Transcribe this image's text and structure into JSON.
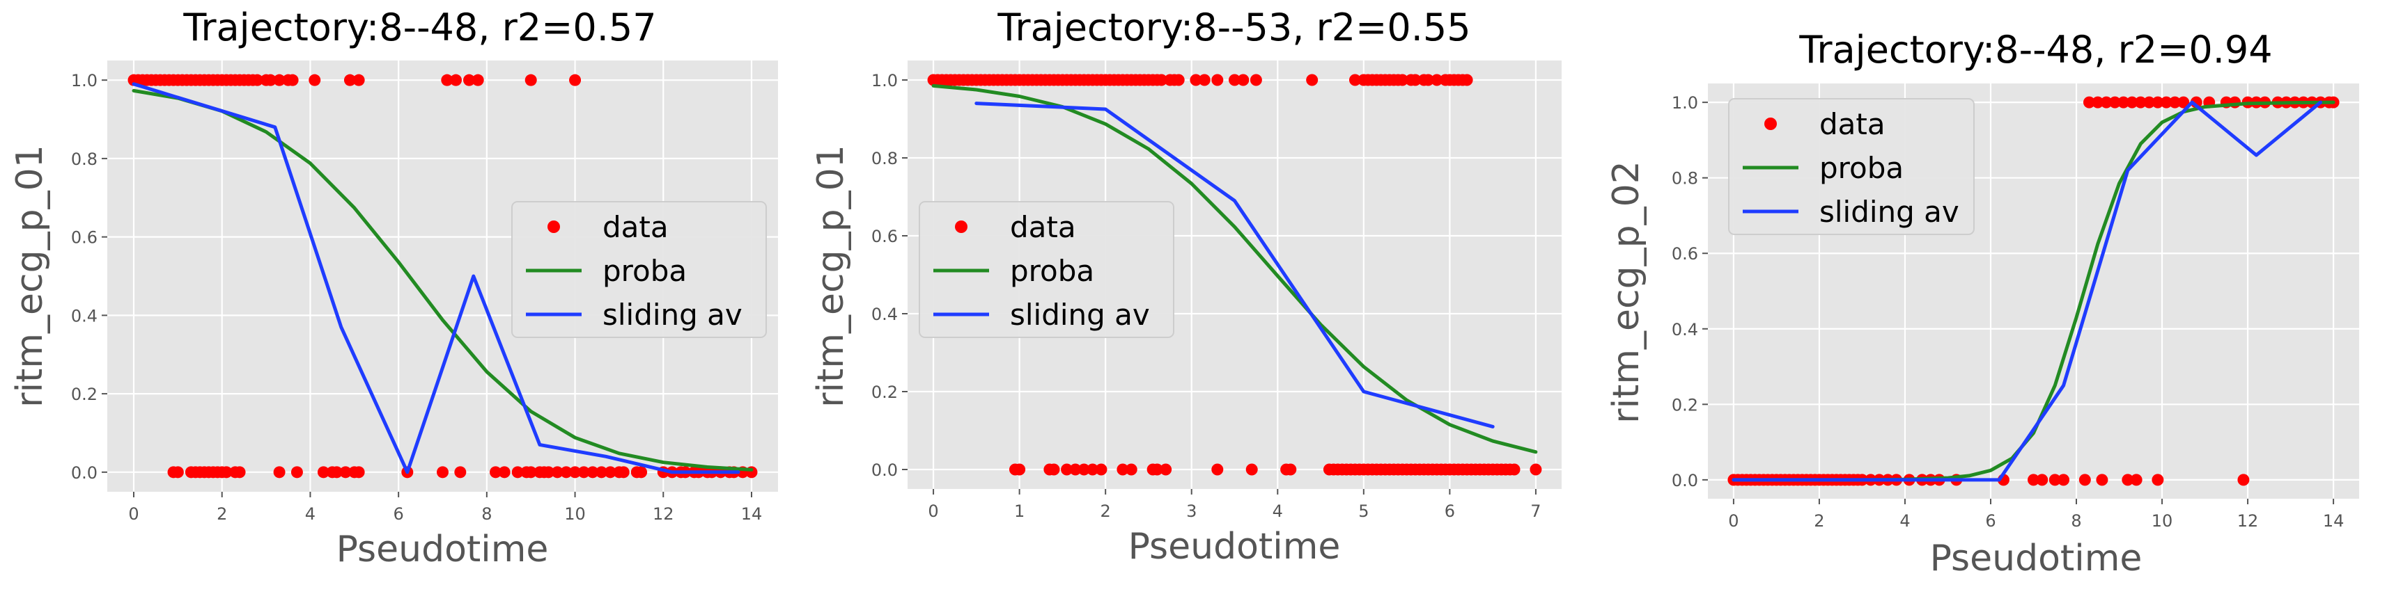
{
  "chart_data": [
    {
      "type": "scatter",
      "title": "Trajectory:8--48, r2=0.57",
      "xlabel": "Pseudotime",
      "ylabel": "ritm_ecg_p_01",
      "xlim": [
        -0.6,
        14.6
      ],
      "ylim": [
        -0.05,
        1.05
      ],
      "xticks": [
        0,
        2,
        4,
        6,
        8,
        10,
        12,
        14
      ],
      "yticks": [
        0.0,
        0.2,
        0.4,
        0.6,
        0.8,
        1.0
      ],
      "ytick_format": 1,
      "grid": true,
      "legend_position": "center-right",
      "series": [
        {
          "name": "data",
          "kind": "points",
          "color": "#ff0000",
          "x": [
            0.0,
            0.1,
            0.2,
            0.3,
            0.4,
            0.5,
            0.6,
            0.7,
            0.8,
            0.9,
            1.0,
            1.1,
            1.2,
            1.3,
            1.4,
            1.5,
            1.6,
            1.7,
            1.8,
            1.9,
            2.0,
            2.1,
            2.2,
            2.3,
            2.4,
            2.5,
            2.6,
            2.7,
            2.8,
            3.0,
            3.1,
            3.3,
            3.5,
            3.6,
            4.1,
            4.9,
            5.1,
            7.1,
            7.3,
            7.6,
            7.8,
            9.0,
            10.0,
            0.9,
            1.0,
            1.3,
            1.4,
            1.5,
            1.6,
            1.7,
            1.8,
            1.9,
            2.0,
            2.1,
            2.3,
            2.4,
            3.3,
            3.7,
            4.3,
            4.5,
            4.6,
            4.8,
            5.0,
            5.1,
            6.2,
            7.0,
            7.4,
            8.2,
            8.4,
            8.7,
            8.9,
            9.0,
            9.2,
            9.3,
            9.4,
            9.6,
            9.8,
            10.0,
            10.2,
            10.4,
            10.6,
            10.8,
            11.0,
            11.1,
            11.4,
            11.5,
            12.0,
            12.2,
            12.4,
            12.5,
            12.7,
            12.8,
            13.0,
            13.1,
            13.3,
            13.5,
            13.6,
            13.8,
            14.0
          ],
          "y": [
            1,
            1,
            1,
            1,
            1,
            1,
            1,
            1,
            1,
            1,
            1,
            1,
            1,
            1,
            1,
            1,
            1,
            1,
            1,
            1,
            1,
            1,
            1,
            1,
            1,
            1,
            1,
            1,
            1,
            1,
            1,
            1,
            1,
            1,
            1,
            1,
            1,
            1,
            1,
            1,
            1,
            1,
            1,
            0,
            0,
            0,
            0,
            0,
            0,
            0,
            0,
            0,
            0,
            0,
            0,
            0,
            0,
            0,
            0,
            0,
            0,
            0,
            0,
            0,
            0,
            0,
            0,
            0,
            0,
            0,
            0,
            0,
            0,
            0,
            0,
            0,
            0,
            0,
            0,
            0,
            0,
            0,
            0,
            0,
            0,
            0,
            0,
            0,
            0,
            0,
            0,
            0,
            0,
            0,
            0,
            0,
            0,
            0,
            0
          ]
        },
        {
          "name": "proba",
          "kind": "line",
          "color": "#228b22",
          "x": [
            0,
            1,
            2,
            3,
            4,
            5,
            6,
            7,
            8,
            9,
            10,
            11,
            12,
            13,
            14
          ],
          "y": [
            0.973,
            0.954,
            0.921,
            0.868,
            0.788,
            0.674,
            0.536,
            0.388,
            0.256,
            0.155,
            0.088,
            0.048,
            0.025,
            0.013,
            0.006
          ]
        },
        {
          "name": "sliding av",
          "kind": "line",
          "color": "#1f3cff",
          "x": [
            0.0,
            3.2,
            4.7,
            6.2,
            7.7,
            9.2,
            10.7,
            12.2,
            13.7
          ],
          "y": [
            0.99,
            0.88,
            0.37,
            0.0,
            0.5,
            0.07,
            0.04,
            0.0,
            0.0
          ]
        }
      ]
    },
    {
      "type": "scatter",
      "title": "Trajectory:8--53, r2=0.55",
      "xlabel": "Pseudotime",
      "ylabel": "ritm_ecg_p_01",
      "xlim": [
        -0.3,
        7.3
      ],
      "ylim": [
        -0.05,
        1.05
      ],
      "xticks": [
        0,
        1,
        2,
        3,
        4,
        5,
        6,
        7
      ],
      "yticks": [
        0.0,
        0.2,
        0.4,
        0.6,
        0.8,
        1.0
      ],
      "ytick_format": 1,
      "grid": true,
      "legend_position": "center-left",
      "series": [
        {
          "name": "data",
          "kind": "points",
          "color": "#ff0000",
          "x": [
            0.0,
            0.05,
            0.1,
            0.15,
            0.2,
            0.25,
            0.3,
            0.35,
            0.4,
            0.45,
            0.5,
            0.55,
            0.6,
            0.65,
            0.7,
            0.75,
            0.8,
            0.85,
            0.9,
            0.95,
            1.0,
            1.05,
            1.1,
            1.15,
            1.2,
            1.25,
            1.3,
            1.35,
            1.4,
            1.45,
            1.5,
            1.55,
            1.6,
            1.65,
            1.7,
            1.75,
            1.8,
            1.85,
            1.9,
            1.95,
            2.0,
            2.05,
            2.1,
            2.15,
            2.2,
            2.25,
            2.3,
            2.35,
            2.4,
            2.45,
            2.5,
            2.55,
            2.6,
            2.65,
            2.75,
            2.8,
            2.85,
            3.05,
            3.15,
            3.3,
            3.5,
            3.6,
            3.75,
            4.4,
            4.9,
            5.0,
            5.05,
            5.1,
            5.15,
            5.2,
            5.25,
            5.3,
            5.35,
            5.4,
            5.45,
            5.55,
            5.6,
            5.7,
            5.75,
            5.85,
            5.95,
            6.0,
            6.05,
            6.1,
            6.15,
            6.2,
            0.95,
            1.0,
            1.35,
            1.4,
            1.55,
            1.65,
            1.75,
            1.85,
            1.95,
            2.2,
            2.3,
            2.55,
            2.6,
            2.7,
            3.3,
            3.7,
            4.1,
            4.15,
            4.6,
            4.65,
            4.7,
            4.75,
            4.8,
            4.85,
            4.9,
            4.95,
            5.0,
            5.05,
            5.1,
            5.15,
            5.2,
            5.25,
            5.3,
            5.35,
            5.4,
            5.45,
            5.5,
            5.55,
            5.6,
            5.65,
            5.7,
            5.75,
            5.8,
            5.85,
            5.9,
            5.95,
            6.0,
            6.05,
            6.1,
            6.15,
            6.2,
            6.25,
            6.3,
            6.35,
            6.4,
            6.45,
            6.5,
            6.55,
            6.6,
            6.65,
            6.7,
            6.75,
            7.0
          ],
          "y": [
            1,
            1,
            1,
            1,
            1,
            1,
            1,
            1,
            1,
            1,
            1,
            1,
            1,
            1,
            1,
            1,
            1,
            1,
            1,
            1,
            1,
            1,
            1,
            1,
            1,
            1,
            1,
            1,
            1,
            1,
            1,
            1,
            1,
            1,
            1,
            1,
            1,
            1,
            1,
            1,
            1,
            1,
            1,
            1,
            1,
            1,
            1,
            1,
            1,
            1,
            1,
            1,
            1,
            1,
            1,
            1,
            1,
            1,
            1,
            1,
            1,
            1,
            1,
            1,
            1,
            1,
            1,
            1,
            1,
            1,
            1,
            1,
            1,
            1,
            1,
            1,
            1,
            1,
            1,
            1,
            1,
            1,
            1,
            1,
            1,
            1,
            0,
            0,
            0,
            0,
            0,
            0,
            0,
            0,
            0,
            0,
            0,
            0,
            0,
            0,
            0,
            0,
            0,
            0,
            0,
            0,
            0,
            0,
            0,
            0,
            0,
            0,
            0,
            0,
            0,
            0,
            0,
            0,
            0,
            0,
            0,
            0,
            0,
            0,
            0,
            0,
            0,
            0,
            0,
            0,
            0,
            0,
            0,
            0,
            0,
            0,
            0,
            0,
            0,
            0,
            0,
            0,
            0,
            0,
            0,
            0,
            0,
            0,
            0
          ]
        },
        {
          "name": "proba",
          "kind": "line",
          "color": "#228b22",
          "x": [
            0,
            0.5,
            1,
            1.5,
            2,
            2.5,
            3,
            3.5,
            4,
            4.5,
            5,
            5.5,
            6,
            6.5,
            7
          ],
          "y": [
            0.985,
            0.975,
            0.958,
            0.931,
            0.887,
            0.823,
            0.734,
            0.623,
            0.497,
            0.372,
            0.264,
            0.178,
            0.115,
            0.073,
            0.045
          ]
        },
        {
          "name": "sliding av",
          "kind": "line",
          "color": "#1f3cff",
          "x": [
            0.5,
            2.0,
            3.5,
            5.0,
            6.5
          ],
          "y": [
            0.94,
            0.925,
            0.69,
            0.2,
            0.11
          ]
        }
      ]
    },
    {
      "type": "scatter",
      "title": "Trajectory:8--48, r2=0.94",
      "xlabel": "Pseudotime",
      "ylabel": "ritm_ecg_p_02",
      "xlim": [
        -0.6,
        14.6
      ],
      "ylim": [
        -0.05,
        1.05
      ],
      "xticks": [
        0,
        2,
        4,
        6,
        8,
        10,
        12,
        14
      ],
      "yticks": [
        0.0,
        0.2,
        0.4,
        0.6,
        0.8,
        1.0
      ],
      "ytick_format": 1,
      "grid": true,
      "legend_position": "upper-left",
      "series": [
        {
          "name": "data",
          "kind": "points",
          "color": "#ff0000",
          "x": [
            8.3,
            8.5,
            8.7,
            8.9,
            9.1,
            9.3,
            9.5,
            9.7,
            9.9,
            10.1,
            10.3,
            10.5,
            10.8,
            11.1,
            11.5,
            11.7,
            12.0,
            12.2,
            12.4,
            12.7,
            12.9,
            13.1,
            13.3,
            13.5,
            13.7,
            13.9,
            14.0,
            0.0,
            0.1,
            0.2,
            0.3,
            0.4,
            0.5,
            0.6,
            0.7,
            0.8,
            0.9,
            1.0,
            1.1,
            1.2,
            1.3,
            1.4,
            1.5,
            1.6,
            1.7,
            1.8,
            1.9,
            2.0,
            2.1,
            2.2,
            2.3,
            2.4,
            2.5,
            2.6,
            2.7,
            2.8,
            2.9,
            3.0,
            3.2,
            3.4,
            3.6,
            3.8,
            4.1,
            4.4,
            4.6,
            4.8,
            5.2,
            6.3,
            7.0,
            7.2,
            7.5,
            7.7,
            8.2,
            8.6,
            9.2,
            9.4,
            9.9,
            11.9
          ],
          "y": [
            1,
            1,
            1,
            1,
            1,
            1,
            1,
            1,
            1,
            1,
            1,
            1,
            1,
            1,
            1,
            1,
            1,
            1,
            1,
            1,
            1,
            1,
            1,
            1,
            1,
            1,
            1,
            0,
            0,
            0,
            0,
            0,
            0,
            0,
            0,
            0,
            0,
            0,
            0,
            0,
            0,
            0,
            0,
            0,
            0,
            0,
            0,
            0,
            0,
            0,
            0,
            0,
            0,
            0,
            0,
            0,
            0,
            0,
            0,
            0,
            0,
            0,
            0,
            0,
            0,
            0,
            0,
            0,
            0,
            0,
            0,
            0,
            0,
            0,
            0,
            0,
            0,
            0
          ]
        },
        {
          "name": "proba",
          "kind": "line",
          "color": "#228b22",
          "x": [
            0,
            1,
            2,
            3,
            4,
            5,
            5.5,
            6,
            6.5,
            7,
            7.5,
            8,
            8.5,
            9,
            9.5,
            10,
            10.5,
            11,
            12,
            13,
            14
          ],
          "y": [
            0.0,
            0.0,
            0.0,
            0.0,
            0.001,
            0.005,
            0.011,
            0.025,
            0.057,
            0.124,
            0.25,
            0.43,
            0.625,
            0.785,
            0.89,
            0.947,
            0.975,
            0.988,
            0.997,
            0.999,
            1.0
          ]
        },
        {
          "name": "sliding av",
          "kind": "line",
          "color": "#1f3cff",
          "x": [
            0.0,
            6.2,
            7.7,
            9.2,
            10.7,
            12.2,
            13.7
          ],
          "y": [
            0.0,
            0.0,
            0.25,
            0.82,
            1.0,
            0.86,
            1.0
          ]
        }
      ]
    }
  ]
}
